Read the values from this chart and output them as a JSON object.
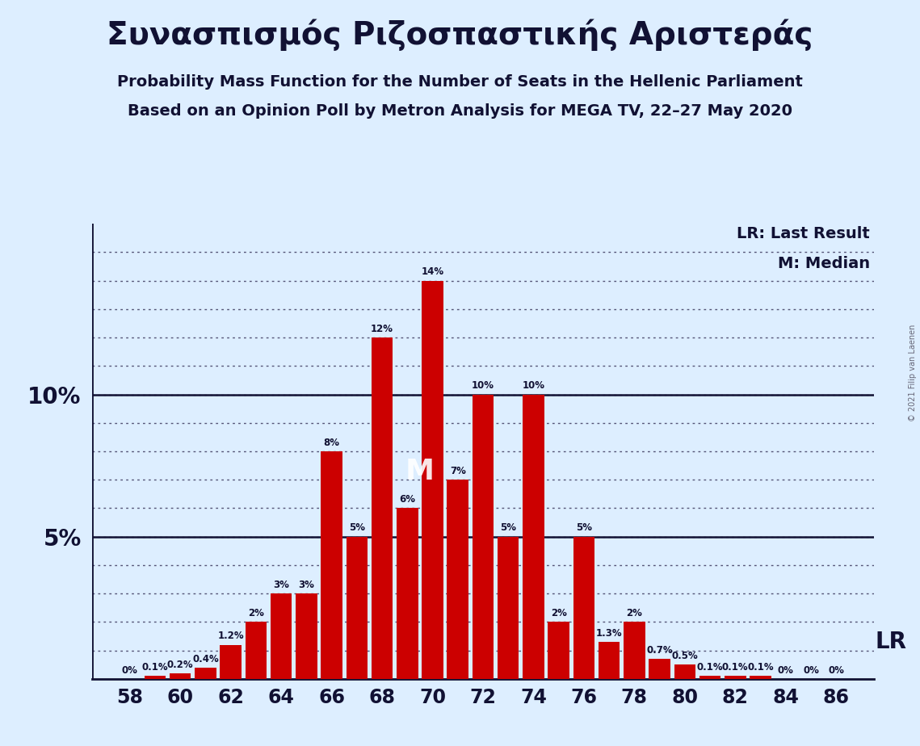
{
  "title_greek": "Συνασπισμός Ριζοσπαστικής Αριστεράς",
  "subtitle1": "Probability Mass Function for the Number of Seats in the Hellenic Parliament",
  "subtitle2": "Based on an Opinion Poll by Metron Analysis for MEGA TV, 22–27 May 2020",
  "copyright": "© 2021 Filip van Laenen",
  "background_color": "#ddeeff",
  "bar_color": "#cc0000",
  "seats": [
    58,
    59,
    60,
    61,
    62,
    63,
    64,
    65,
    66,
    67,
    68,
    69,
    70,
    71,
    72,
    73,
    74,
    75,
    76,
    77,
    78,
    79,
    80,
    81,
    82,
    83,
    84,
    85,
    86
  ],
  "probabilities": [
    0.0,
    0.1,
    0.2,
    0.4,
    1.2,
    2.0,
    3.0,
    3.0,
    8.0,
    5.0,
    12.0,
    6.0,
    14.0,
    7.0,
    10.0,
    5.0,
    10.0,
    2.0,
    5.0,
    1.3,
    2.0,
    0.7,
    0.5,
    0.1,
    0.1,
    0.1,
    0.0,
    0.0,
    0.0
  ],
  "bar_labels": [
    "0%",
    "0.1%",
    "0.2%",
    "0.4%",
    "1.2%",
    "2%",
    "3%",
    "3%",
    "8%",
    "5%",
    "12%",
    "6%",
    "14%",
    "7%",
    "10%",
    "5%",
    "10%",
    "2%",
    "5%",
    "1.3%",
    "2%",
    "0.7%",
    "0.5%",
    "0.1%",
    "0.1%",
    "0.1%",
    "0%",
    "0%",
    "0%"
  ],
  "median_seat": 70,
  "lr_seat": 86,
  "xtick_seats": [
    58,
    60,
    62,
    64,
    66,
    68,
    70,
    72,
    74,
    76,
    78,
    80,
    82,
    84,
    86
  ],
  "ymax": 16,
  "dotted_line_color": "#555577",
  "solid_line_color": "#111133",
  "text_color": "#111133"
}
